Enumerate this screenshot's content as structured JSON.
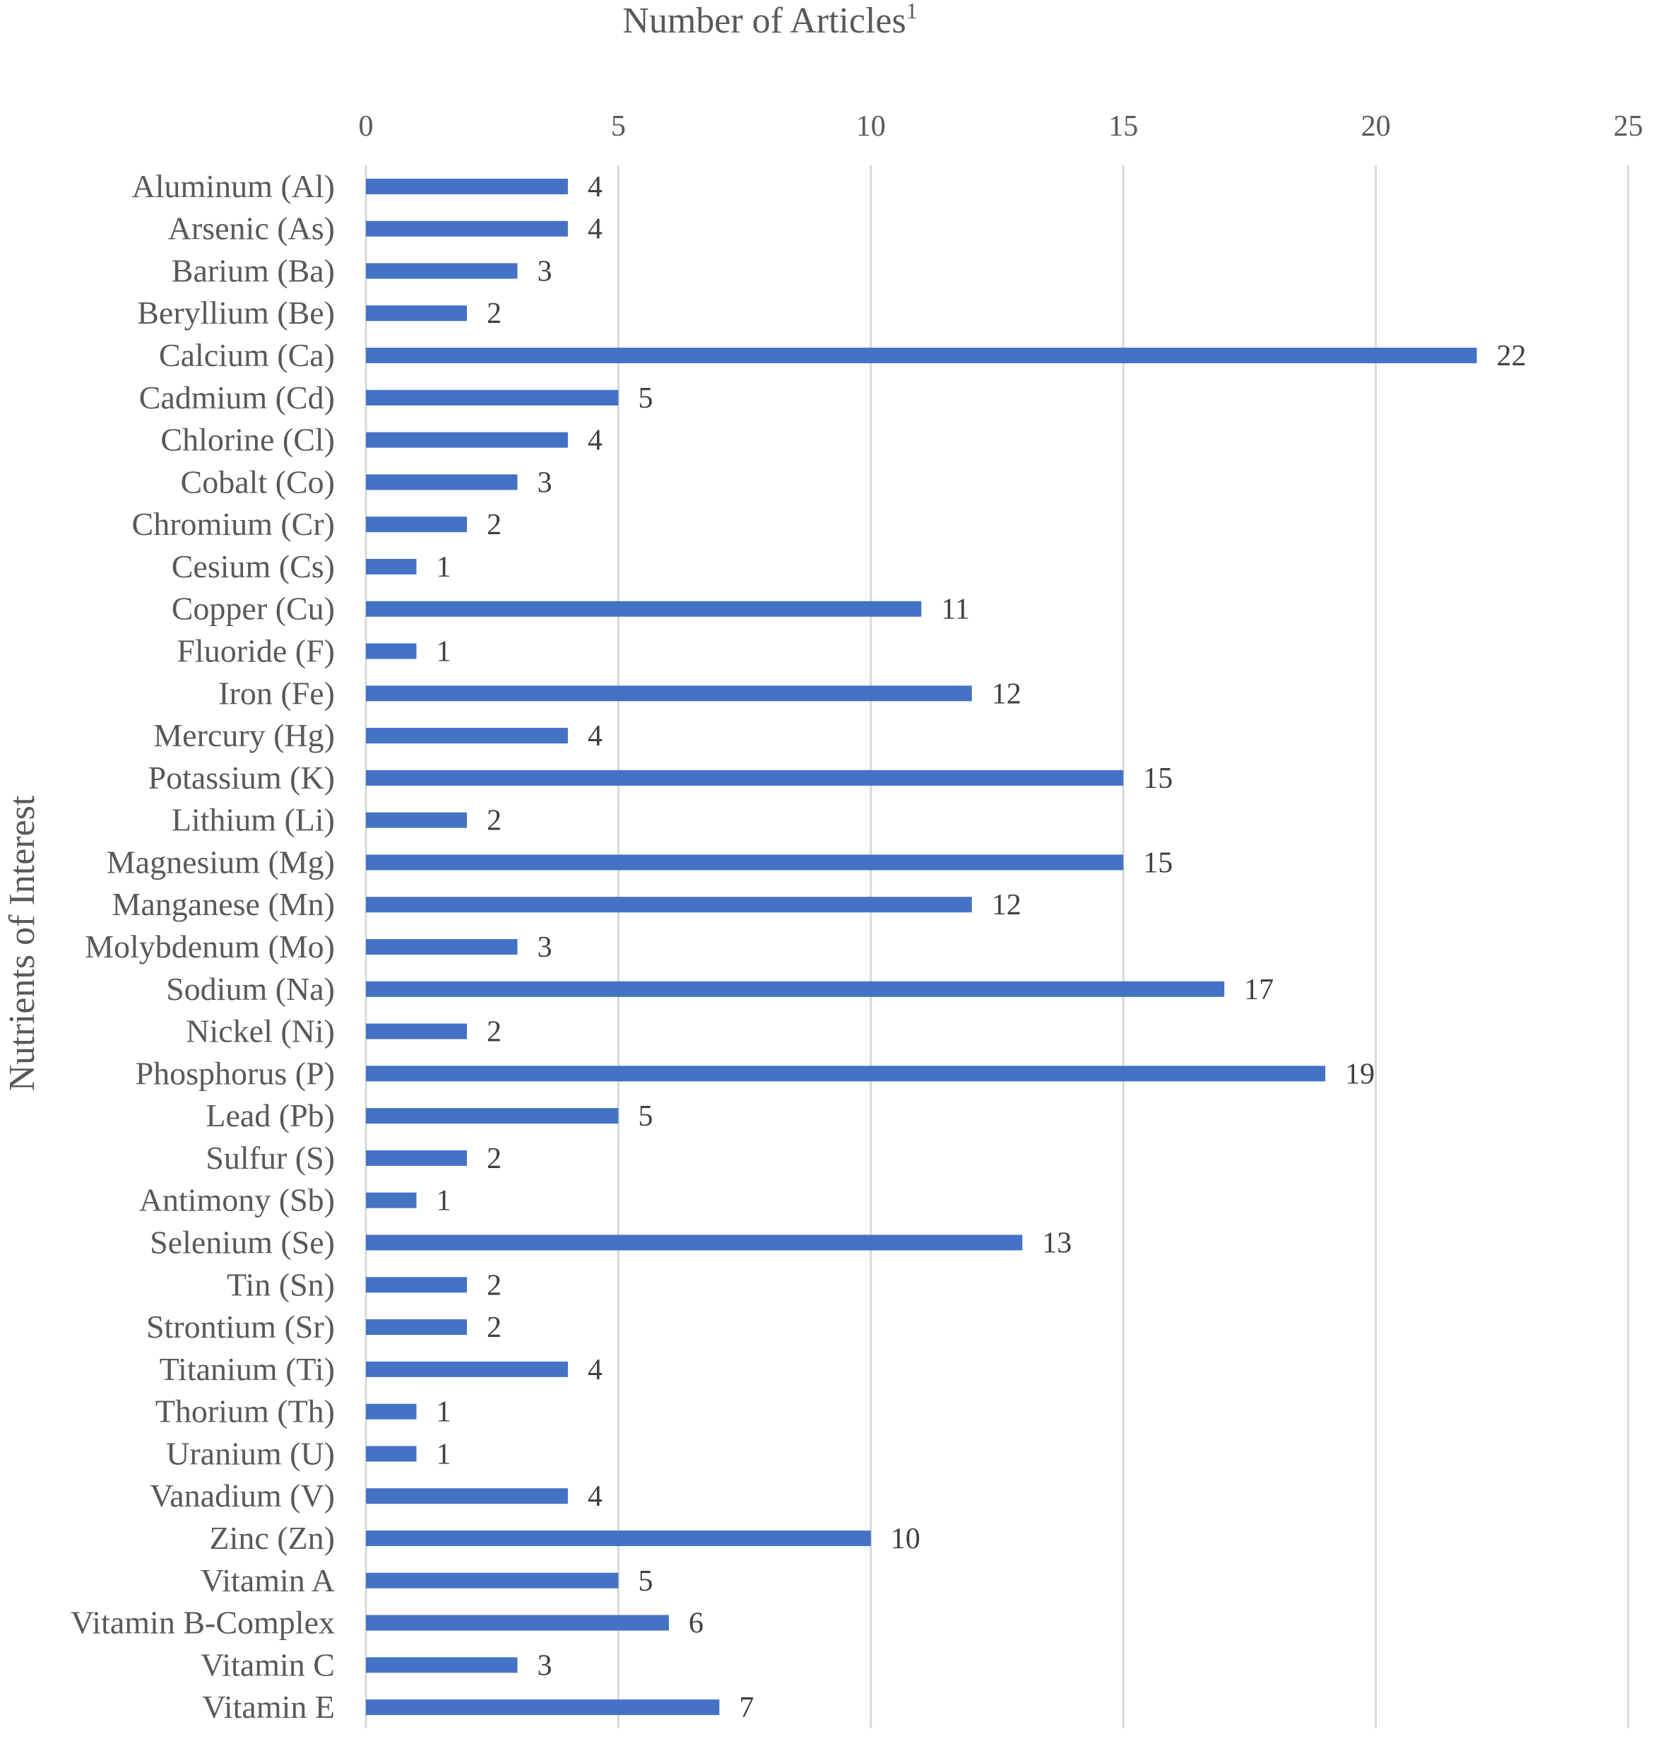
{
  "chart_data": {
    "type": "bar",
    "orientation": "horizontal",
    "title": "Number of Articles",
    "title_superscript": "1",
    "xlabel": "Number of Articles",
    "ylabel": "Nutrients of Interest",
    "xlim": [
      0,
      25
    ],
    "x_ticks": [
      0,
      5,
      10,
      15,
      20,
      25
    ],
    "x_axis_position": "top",
    "grid": true,
    "bar_color": "#4472C4",
    "data_labels": true,
    "categories": [
      "Aluminum (Al)",
      "Arsenic (As)",
      "Barium (Ba)",
      "Beryllium (Be)",
      "Calcium (Ca)",
      "Cadmium (Cd)",
      "Chlorine (Cl)",
      "Cobalt (Co)",
      "Chromium (Cr)",
      "Cesium (Cs)",
      "Copper (Cu)",
      "Fluoride (F)",
      "Iron (Fe)",
      "Mercury (Hg)",
      "Potassium (K)",
      "Lithium (Li)",
      "Magnesium (Mg)",
      "Manganese (Mn)",
      "Molybdenum (Mo)",
      "Sodium (Na)",
      "Nickel (Ni)",
      "Phosphorus (P)",
      "Lead (Pb)",
      "Sulfur (S)",
      "Antimony (Sb)",
      "Selenium (Se)",
      "Tin (Sn)",
      "Strontium (Sr)",
      "Titanium (Ti)",
      "Thorium (Th)",
      "Uranium (U)",
      "Vanadium (V)",
      "Zinc (Zn)",
      "Vitamin A",
      "Vitamin B-Complex",
      "Vitamin C",
      "Vitamin E"
    ],
    "values": [
      4,
      4,
      3,
      2,
      22,
      5,
      4,
      3,
      2,
      1,
      11,
      1,
      12,
      4,
      15,
      2,
      15,
      12,
      3,
      17,
      2,
      19,
      5,
      2,
      1,
      13,
      2,
      2,
      4,
      1,
      1,
      4,
      10,
      5,
      6,
      3,
      7
    ]
  }
}
